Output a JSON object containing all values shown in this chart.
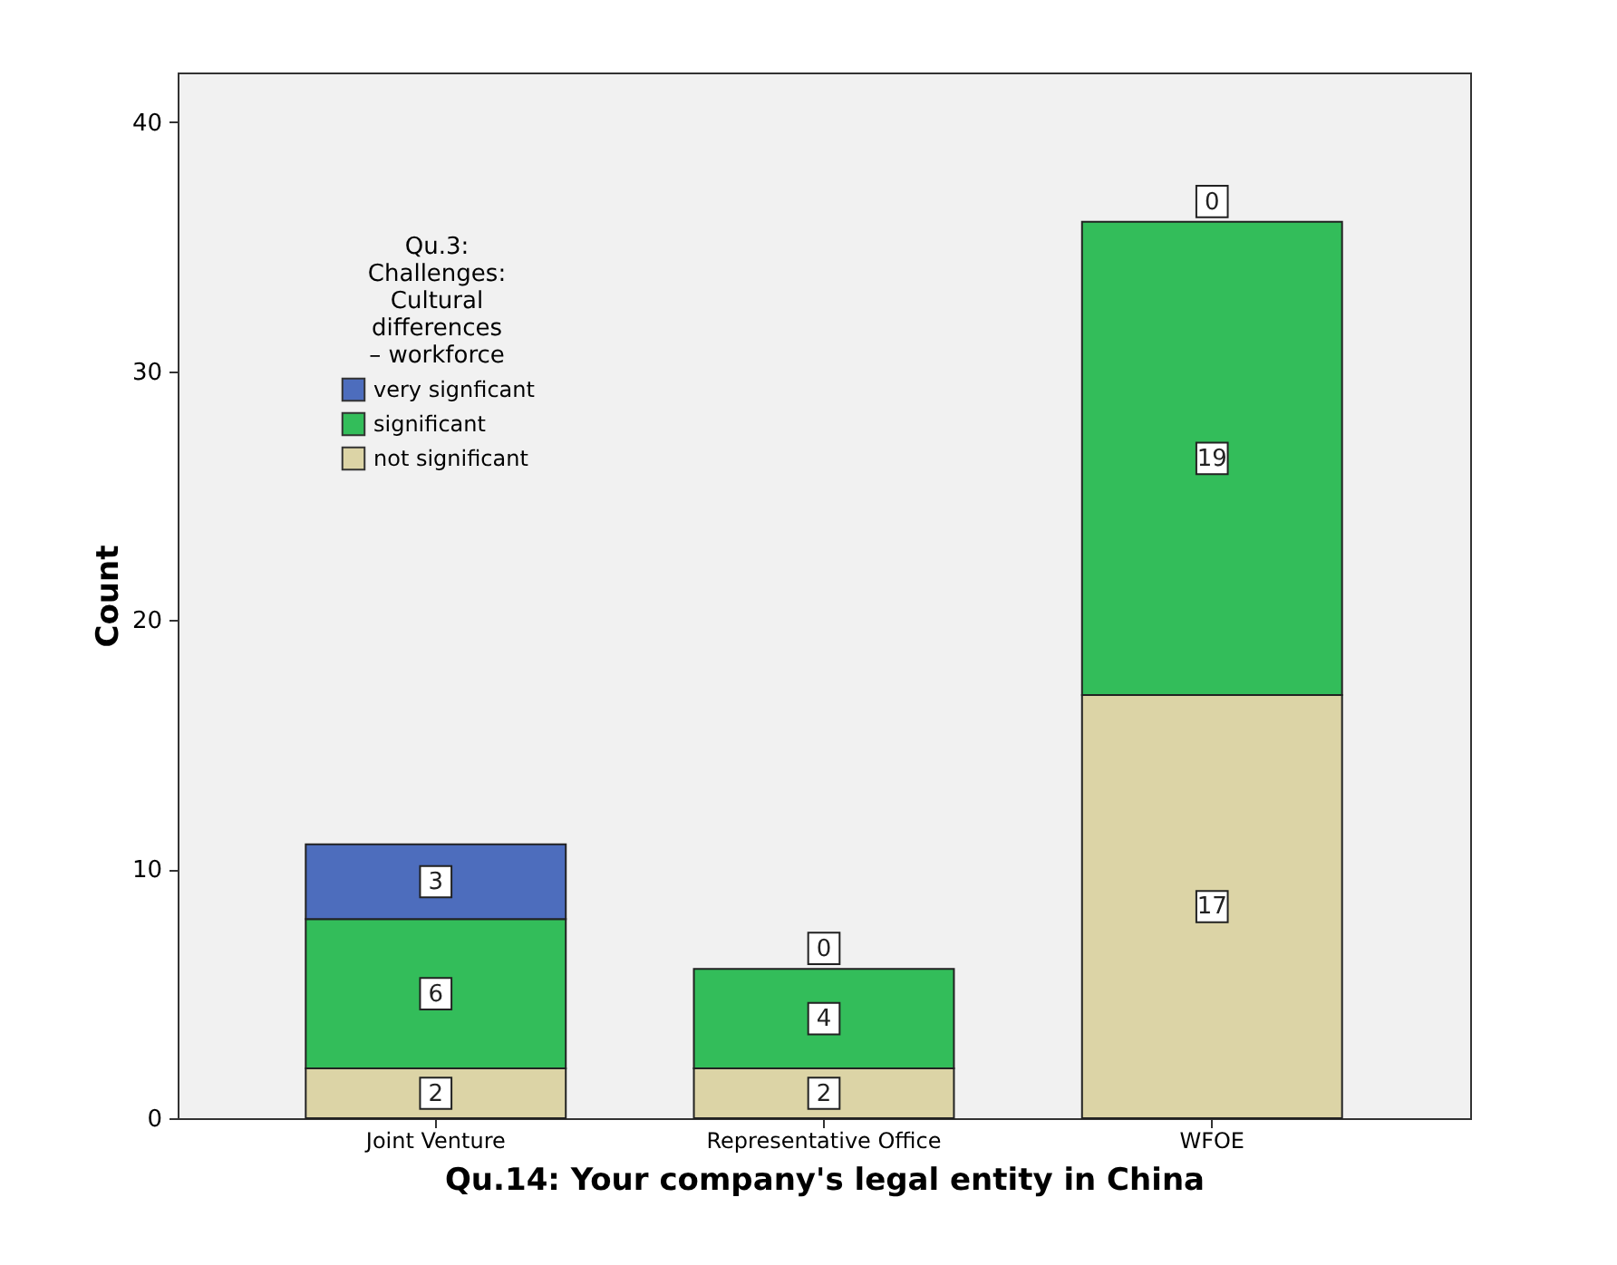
{
  "chart_data": {
    "type": "bar",
    "stacked": true,
    "xlabel": "Qu.14: Your company's legal entity in China",
    "ylabel": "Count",
    "legend_title": "Qu.3: Challenges: Cultural differences – workforce",
    "legend": "top left",
    "categories": [
      "Joint Venture",
      "Representative Office",
      "WFOE"
    ],
    "series": [
      {
        "name": "not significant",
        "color": "#dcd4a6",
        "values": [
          2,
          2,
          17
        ]
      },
      {
        "name": "significant",
        "color": "#33bd5a",
        "values": [
          6,
          4,
          19
        ]
      },
      {
        "name": "very signficant",
        "color": "#4d6dbd",
        "values": [
          3,
          0,
          0
        ]
      }
    ],
    "ylim": [
      0,
      42
    ],
    "yticks": [
      0,
      10,
      20,
      30,
      40
    ],
    "grid": false,
    "data_labels": true
  }
}
